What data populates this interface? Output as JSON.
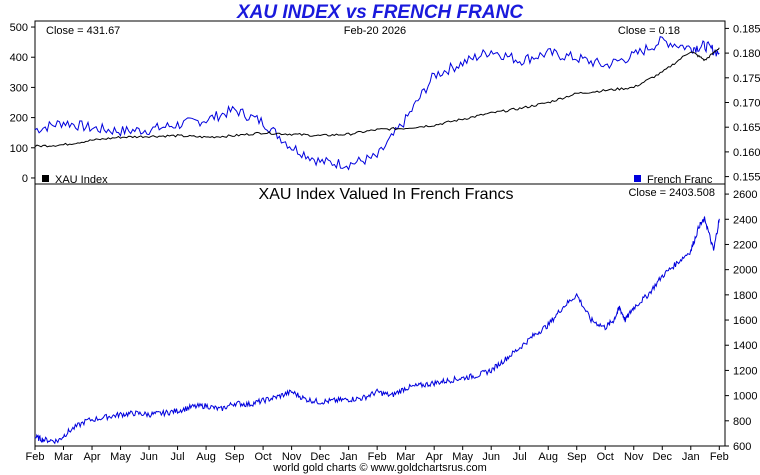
{
  "title": "XAU INDEX vs FRENCH FRANC",
  "footer": "world gold charts © www.goldchartsrus.com",
  "colors": {
    "xau": "#000000",
    "franc": "#0000dd",
    "axis": "#000000"
  },
  "top_panel": {
    "close_left": "Close = 431.67",
    "date": "Feb-20  2026",
    "close_right": "Close = 0.18",
    "legend_left": "XAU Index",
    "legend_right": "French Franc"
  },
  "bottom_panel": {
    "heading": "XAU Index Valued In French Francs",
    "close": "Close = 2403.508"
  },
  "months": [
    "Feb",
    "Mar",
    "Apr",
    "May",
    "Jun",
    "Jul",
    "Aug",
    "Sep",
    "Oct",
    "Nov",
    "Dec",
    "Jan",
    "Feb",
    "Mar",
    "Apr",
    "May",
    "Jun",
    "Jul",
    "Aug",
    "Sep",
    "Oct",
    "Nov",
    "Dec",
    "Jan",
    "Feb"
  ],
  "chart_data": [
    {
      "type": "line",
      "xlabel": "",
      "ylabel": "",
      "x_ticks": [
        "Feb",
        "Mar",
        "Apr",
        "May",
        "Jun",
        "Jul",
        "Aug",
        "Sep",
        "Oct",
        "Nov",
        "Dec",
        "Jan",
        "Feb",
        "Mar",
        "Apr",
        "May",
        "Jun",
        "Jul",
        "Aug",
        "Sep",
        "Oct",
        "Nov",
        "Dec",
        "Jan",
        "Feb"
      ],
      "y_left": {
        "ticks": [
          0,
          100,
          200,
          300,
          400,
          500
        ],
        "ylim": [
          -20,
          520
        ]
      },
      "y_right": {
        "ticks": [
          0.155,
          0.16,
          0.165,
          0.17,
          0.175,
          0.18,
          0.185
        ],
        "ylim": [
          0.1535,
          0.1865
        ]
      },
      "series": [
        {
          "name": "XAU Index",
          "axis": "left",
          "t": [
            0,
            1,
            2,
            3,
            4,
            5,
            6,
            7,
            8,
            9,
            10,
            11,
            12,
            13,
            14,
            15,
            16,
            17,
            18,
            19,
            20,
            21,
            22,
            23,
            23.5,
            24
          ],
          "values": [
            105,
            110,
            125,
            135,
            138,
            140,
            135,
            140,
            150,
            145,
            140,
            145,
            160,
            165,
            175,
            195,
            215,
            230,
            250,
            280,
            290,
            300,
            350,
            420,
            390,
            431.67
          ]
        },
        {
          "name": "French Franc",
          "axis": "right",
          "t": [
            0,
            1,
            2,
            3,
            4,
            5,
            6,
            7,
            8,
            9,
            10,
            11,
            12,
            13,
            14,
            15,
            16,
            17,
            18,
            19,
            20,
            21,
            22,
            23,
            23.5,
            24
          ],
          "values": [
            0.1645,
            0.166,
            0.1648,
            0.1642,
            0.1645,
            0.1655,
            0.1665,
            0.1685,
            0.166,
            0.161,
            0.158,
            0.1575,
            0.159,
            0.1665,
            0.1755,
            0.178,
            0.1805,
            0.1785,
            0.18,
            0.179,
            0.1775,
            0.1795,
            0.1825,
            0.181,
            0.1815,
            0.18
          ]
        }
      ]
    },
    {
      "type": "line",
      "title": "XAU Index Valued In French Francs",
      "xlabel": "",
      "ylabel": "",
      "y_ticks": [
        600,
        800,
        1000,
        1200,
        1400,
        1600,
        1800,
        2000,
        2200,
        2400,
        2600
      ],
      "ylim": [
        600,
        2680
      ],
      "series": [
        {
          "name": "XAU Index Valued In French Francs",
          "t": [
            0,
            0.3,
            0.8,
            1.2,
            1.8,
            2.5,
            3,
            3.5,
            4,
            4.5,
            5,
            5.5,
            6,
            6.5,
            7,
            7.5,
            8,
            8.5,
            9,
            9.5,
            10,
            10.5,
            11,
            11.5,
            12,
            12.5,
            13,
            13.5,
            14,
            14.5,
            15,
            15.5,
            16,
            16.5,
            17,
            17.5,
            18,
            18.5,
            19,
            19.5,
            20,
            20.3,
            20.5,
            20.7,
            21,
            21.5,
            22,
            22.5,
            23,
            23.3,
            23.5,
            23.8,
            24
          ],
          "values": [
            670,
            650,
            640,
            720,
            800,
            830,
            850,
            860,
            850,
            860,
            880,
            910,
            920,
            890,
            940,
            930,
            960,
            990,
            1030,
            970,
            950,
            960,
            970,
            980,
            1030,
            1000,
            1060,
            1080,
            1100,
            1120,
            1140,
            1160,
            1200,
            1290,
            1380,
            1480,
            1560,
            1700,
            1800,
            1600,
            1540,
            1600,
            1700,
            1600,
            1700,
            1800,
            1950,
            2050,
            2150,
            2350,
            2400,
            2150,
            2403.508
          ]
        }
      ]
    }
  ]
}
